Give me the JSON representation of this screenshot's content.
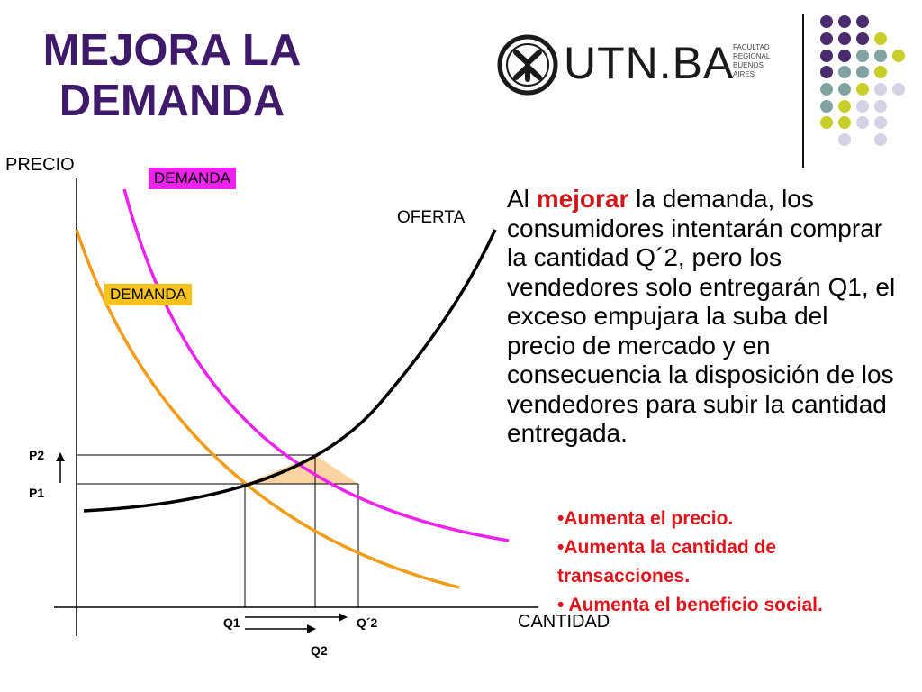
{
  "slide": {
    "title_line1": "MEJORA LA",
    "title_line2": "DEMANDA"
  },
  "logo": {
    "name": "UTN.BA",
    "sub_line1": "FACULTAD",
    "sub_line2": "REGIONAL",
    "sub_line3": "BUENOS AIRES"
  },
  "colors": {
    "title": "#3f1a6b",
    "purple_dot": "#4a2c6e",
    "teal_dot": "#7fa3a0",
    "lime_dot": "#c9cf2a",
    "lavender_dot": "#d4d3e6",
    "demand_new": "#ee22ee",
    "demand_old": "#f39c18",
    "supply": "#000000",
    "surplus_fill": "#fbd3a1",
    "bullet_text": "#e0141a"
  },
  "diagram": {
    "y_axis_label": "PRECIO",
    "x_axis_label": "CANTIDAD",
    "supply_label": "OFERTA",
    "demand_new_label": "DEMANDA",
    "demand_old_label": "DEMANDA",
    "p2": "P2",
    "p1": "P1",
    "q1": "Q1",
    "q_prime_2": "Q´2",
    "q2": "Q2"
  },
  "text": {
    "para_start": "Al ",
    "para_highlight": "mejorar",
    "para_rest": " la demanda, los consumidores intentarán comprar la cantidad Q´2, pero los vendedores solo entregarán Q1, el exceso empujara la suba del precio de mercado y en consecuencia la disposición de los vendedores para subir la cantidad entregada."
  },
  "bullets": [
    "•Aumenta el precio.",
    "•Aumenta la cantidad de transacciones.",
    "•  Aumenta el beneficio social."
  ]
}
